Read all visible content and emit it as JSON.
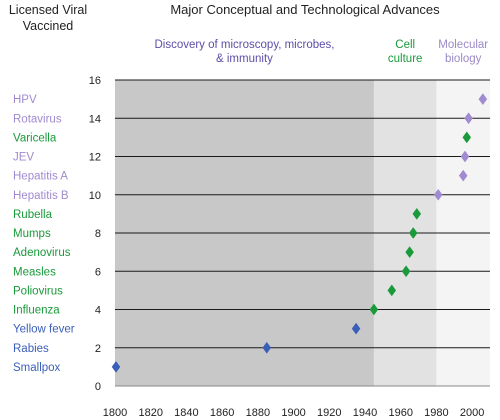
{
  "chart_data": {
    "type": "scatter",
    "title": "Major Conceptual and Technological Advances",
    "left_heading_line1": "Licensed Viral",
    "left_heading_line2": "Vaccined",
    "xlabel": "",
    "ylabel": "",
    "xlim": [
      1800,
      2010
    ],
    "ylim": [
      0,
      16
    ],
    "x_ticks": [
      "1800",
      "1820",
      "1840",
      "1860",
      "1880",
      "1900",
      "1920",
      "1940",
      "1960",
      "1980",
      "2000"
    ],
    "y_ticks": [
      "0",
      "2",
      "4",
      "6",
      "8",
      "10",
      "12",
      "14",
      "16"
    ],
    "grid": "horizontal",
    "eras": [
      {
        "name": "Discovery of microscopy, microbes, & immunity",
        "line1": "Discovery of microscopy, microbes,",
        "line2": "& immunity",
        "start": 1800,
        "end": 1945,
        "fill": "#c8c8c8",
        "label_color": "#5b4fa8"
      },
      {
        "name": "Cell culture",
        "line1": "Cell",
        "line2": "culture",
        "start": 1945,
        "end": 1980,
        "fill": "#e2e2e2",
        "label_color": "#1a9a3a"
      },
      {
        "name": "Molecular biology",
        "line1": "Molecular",
        "line2": "biology",
        "start": 1980,
        "end": 2010,
        "fill": "#f4f4f4",
        "label_color": "#9b8ac8"
      }
    ],
    "colors": {
      "blue": "#3a5fb8",
      "green": "#1a9a3a",
      "purple": "#a08ad0"
    },
    "points": [
      {
        "label": "Smallpox",
        "x": 1798,
        "y": 1,
        "color": "blue"
      },
      {
        "label": "Rabies",
        "x": 1885,
        "y": 2,
        "color": "blue"
      },
      {
        "label": "Yellow fever",
        "x": 1935,
        "y": 3,
        "color": "blue"
      },
      {
        "label": "Influenza",
        "x": 1945,
        "y": 4,
        "color": "green"
      },
      {
        "label": "Poliovirus",
        "x": 1955,
        "y": 5,
        "color": "green"
      },
      {
        "label": "Measles",
        "x": 1963,
        "y": 6,
        "color": "green"
      },
      {
        "label": "Adenovirus",
        "x": 1965,
        "y": 7,
        "color": "green"
      },
      {
        "label": "Mumps",
        "x": 1967,
        "y": 8,
        "color": "green"
      },
      {
        "label": "Rubella",
        "x": 1969,
        "y": 9,
        "color": "green"
      },
      {
        "label": "Hepatitis B",
        "x": 1981,
        "y": 10,
        "color": "purple"
      },
      {
        "label": "Hepatitis A",
        "x": 1995,
        "y": 11,
        "color": "purple"
      },
      {
        "label": "JEV",
        "x": 1996,
        "y": 12,
        "color": "purple"
      },
      {
        "label": "Varicella",
        "x": 1997,
        "y": 13,
        "color": "green"
      },
      {
        "label": "Rotavirus",
        "x": 1998,
        "y": 14,
        "color": "purple"
      },
      {
        "label": "HPV",
        "x": 2006,
        "y": 15,
        "color": "purple"
      }
    ]
  }
}
